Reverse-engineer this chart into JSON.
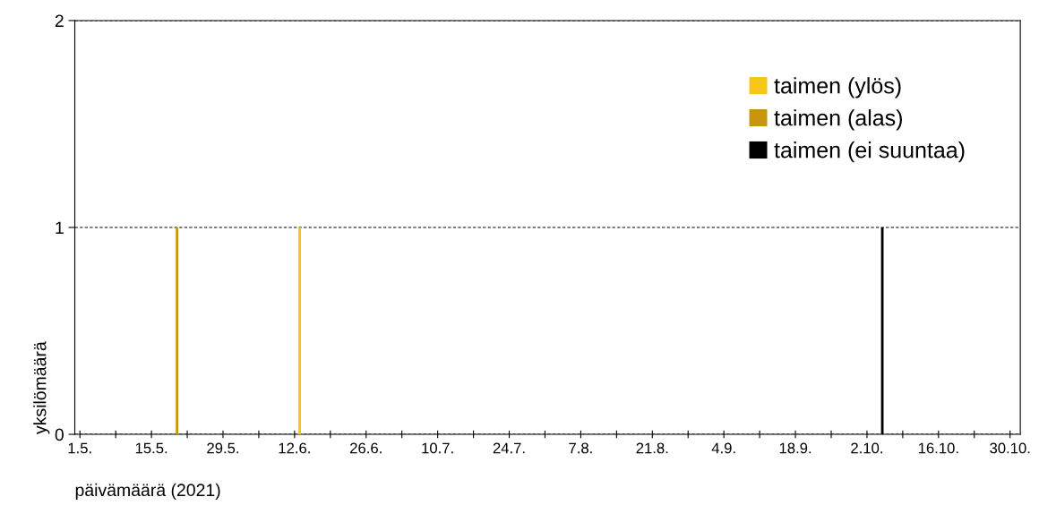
{
  "chart_data": {
    "type": "bar",
    "xlabel": "päivämäärä (2021)",
    "ylabel": "yksilömäärä",
    "series": [
      {
        "name": "taimen (ylös)",
        "color": "#f5c518",
        "x": [
          "2021-06-13"
        ],
        "values": [
          1
        ]
      },
      {
        "name": "taimen (alas)",
        "color": "#c8960c",
        "x": [
          "2021-05-20"
        ],
        "values": [
          1
        ]
      },
      {
        "name": "taimen (ei suuntaa)",
        "color": "#000000",
        "x": [
          "2021-10-05"
        ],
        "values": [
          1
        ]
      }
    ],
    "xlim": [
      "2021-04-30",
      "2021-11-01"
    ],
    "xticks": [
      {
        "value": "2021-05-01",
        "label": "1.5."
      },
      {
        "value": "2021-05-08",
        "label": null
      },
      {
        "value": "2021-05-15",
        "label": "15.5."
      },
      {
        "value": "2021-05-22",
        "label": null
      },
      {
        "value": "2021-05-29",
        "label": "29.5."
      },
      {
        "value": "2021-06-05",
        "label": null
      },
      {
        "value": "2021-06-12",
        "label": "12.6."
      },
      {
        "value": "2021-06-19",
        "label": null
      },
      {
        "value": "2021-06-26",
        "label": "26.6."
      },
      {
        "value": "2021-07-03",
        "label": null
      },
      {
        "value": "2021-07-10",
        "label": "10.7."
      },
      {
        "value": "2021-07-17",
        "label": null
      },
      {
        "value": "2021-07-24",
        "label": "24.7."
      },
      {
        "value": "2021-07-31",
        "label": null
      },
      {
        "value": "2021-08-07",
        "label": "7.8."
      },
      {
        "value": "2021-08-14",
        "label": null
      },
      {
        "value": "2021-08-21",
        "label": "21.8."
      },
      {
        "value": "2021-08-28",
        "label": null
      },
      {
        "value": "2021-09-04",
        "label": "4.9."
      },
      {
        "value": "2021-09-11",
        "label": null
      },
      {
        "value": "2021-09-18",
        "label": "18.9."
      },
      {
        "value": "2021-09-25",
        "label": null
      },
      {
        "value": "2021-10-02",
        "label": "2.10."
      },
      {
        "value": "2021-10-09",
        "label": null
      },
      {
        "value": "2021-10-16",
        "label": "16.10."
      },
      {
        "value": "2021-10-23",
        "label": null
      },
      {
        "value": "2021-10-30",
        "label": "30.10."
      }
    ],
    "ylim": [
      0,
      2
    ],
    "yticks": [
      0,
      1,
      2
    ],
    "grid": "y",
    "legend": "top right"
  }
}
